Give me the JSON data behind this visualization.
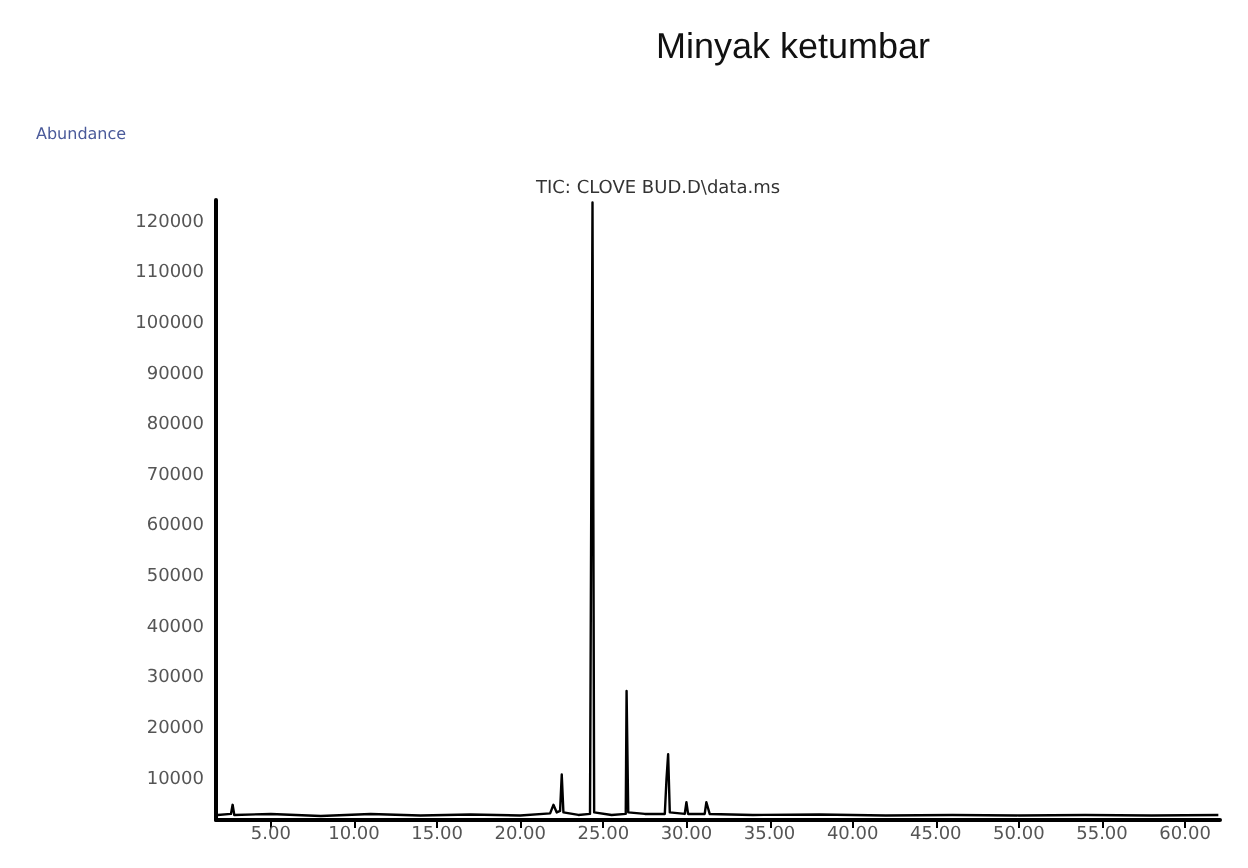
{
  "chart_data": {
    "type": "line",
    "title": "Minyak ketumbar",
    "subtitle": "TIC: CLOVE BUD.D\\data.ms",
    "ylabel": "Abundance",
    "series": [
      {
        "color": "#000000",
        "x": [
          1.8,
          2.6,
          2.7,
          2.8,
          5,
          8,
          11,
          14,
          17,
          20,
          21.8,
          22.0,
          22.2,
          22.4,
          22.5,
          22.6,
          23.5,
          24.2,
          24.3,
          24.35,
          24.45,
          25.5,
          26.35,
          26.4,
          26.5,
          27.5,
          28.7,
          28.8,
          28.9,
          29.0,
          29.9,
          30.0,
          30.1,
          31.1,
          31.2,
          31.4,
          34,
          38,
          42,
          46,
          50,
          54,
          58,
          62
        ],
        "values": [
          3000,
          3200,
          5000,
          3000,
          3200,
          2800,
          3200,
          2900,
          3100,
          2900,
          3300,
          5000,
          3500,
          3800,
          11000,
          3500,
          3000,
          3200,
          85000,
          124000,
          3500,
          3000,
          3200,
          27500,
          3500,
          3200,
          3200,
          10000,
          15000,
          3500,
          3200,
          5500,
          3200,
          3200,
          5500,
          3200,
          3000,
          3100,
          2900,
          3000,
          2900,
          3000,
          2900,
          3000
        ]
      }
    ],
    "xlim": [
      1.7,
      62.1
    ],
    "ylim": [
      2000,
      124500
    ],
    "xticks": [
      {
        "value": 5,
        "label": "5.00"
      },
      {
        "value": 10,
        "label": "10.00"
      },
      {
        "value": 15,
        "label": "15.00"
      },
      {
        "value": 20,
        "label": "20.00"
      },
      {
        "value": 25,
        "label": "25.00"
      },
      {
        "value": 30,
        "label": "30.00"
      },
      {
        "value": 35,
        "label": "35.00"
      },
      {
        "value": 40,
        "label": "40.00"
      },
      {
        "value": 45,
        "label": "45.00"
      },
      {
        "value": 50,
        "label": "50.00"
      },
      {
        "value": 55,
        "label": "55.00"
      },
      {
        "value": 60,
        "label": "60.00"
      }
    ],
    "yticks": [
      10000,
      20000,
      30000,
      40000,
      50000,
      60000,
      70000,
      80000,
      90000,
      100000,
      110000,
      120000
    ],
    "grid": false,
    "marker": "none",
    "line_style": "solid"
  }
}
